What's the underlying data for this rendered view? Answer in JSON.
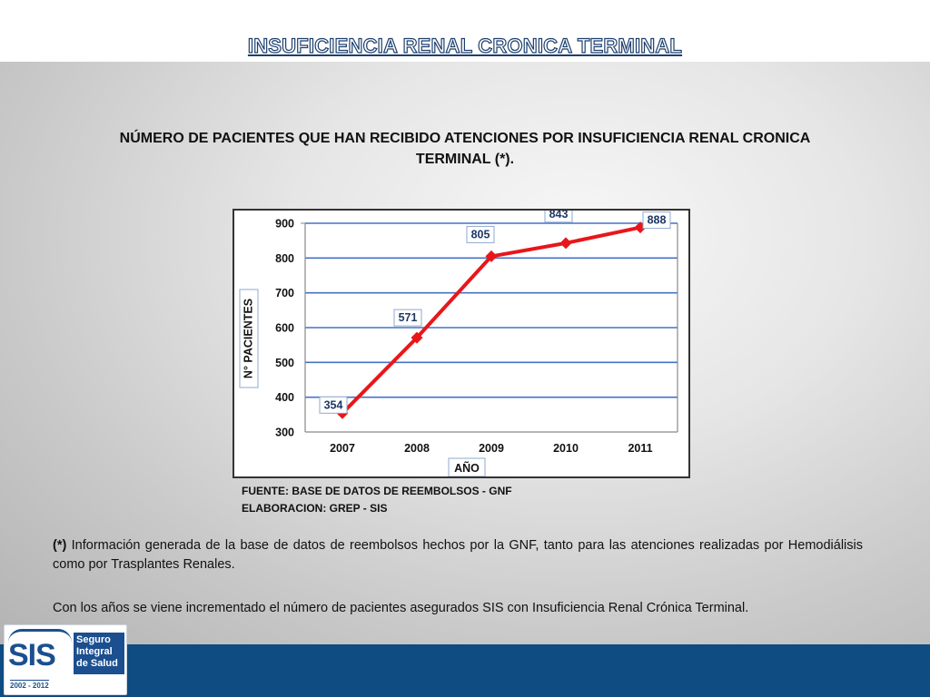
{
  "slide": {
    "title": "INSUFICIENCIA RENAL CRONICA TERMINAL",
    "chart_heading": "NÚMERO DE PACIENTES QUE HAN RECIBIDO ATENCIONES POR INSUFICIENCIA RENAL CRONICA TERMINAL (*).",
    "source_line_1": "FUENTE: BASE  DE DATOS DE REEMBOLSOS - GNF",
    "source_line_2": "ELABORACION: GREP - SIS",
    "note_1_marker": "(*)",
    "note_1_text": " Información generada de la base de datos de reembolsos hechos por la GNF, tanto para las atenciones realizadas por Hemodiálisis como por Trasplantes Renales.",
    "note_2_text": "Con los años se viene incrementado el número de pacientes asegurados SIS con Insuficiencia Renal Crónica Terminal."
  },
  "logo": {
    "mark": "SIS",
    "line_1": "Seguro",
    "line_2": "Integral",
    "line_3": "de Salud",
    "years": "2002 - 2012"
  },
  "colors": {
    "line": "#e8161b",
    "marker": "#e8161b",
    "grid": "#4472c4",
    "label_text": "#1f3864",
    "band_bottom": "#0f4c81"
  },
  "chart_data": {
    "type": "line",
    "categories": [
      "2007",
      "2008",
      "2009",
      "2010",
      "2011"
    ],
    "series": [
      {
        "values": [
          354,
          571,
          805,
          843,
          888
        ]
      }
    ],
    "data_labels": [
      "354",
      "571",
      "805",
      "843",
      "888"
    ],
    "xlabel": "AÑO",
    "ylabel": "N° PACIENTES",
    "ylim": [
      300,
      900
    ],
    "yticks": [
      300,
      400,
      500,
      600,
      700,
      800,
      900
    ],
    "grid": true
  }
}
